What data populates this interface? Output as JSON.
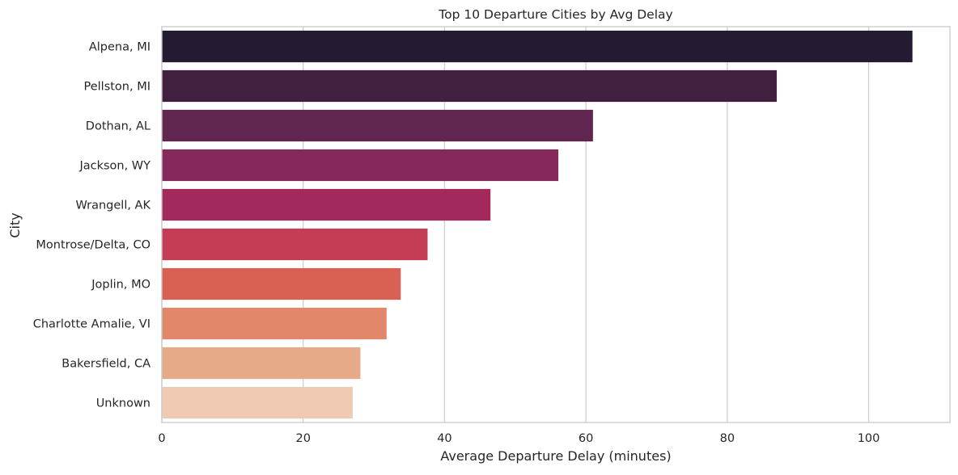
{
  "chart_data": {
    "type": "bar",
    "orientation": "horizontal",
    "title": "Top 10 Departure Cities by Avg Delay",
    "xlabel": "Average Departure Delay (minutes)",
    "ylabel": "City",
    "xlim": [
      0,
      111.5
    ],
    "xticks": [
      0,
      20,
      40,
      60,
      80,
      100
    ],
    "grid": "vertical",
    "legend": "none",
    "categories": [
      "Alpena, MI",
      "Pellston, MI",
      "Dothan, AL",
      "Jackson, WY",
      "Wrangell, AK",
      "Montrose/Delta, CO",
      "Joplin, MO",
      "Charlotte Amalie, VI",
      "Bakersfield, CA",
      "Unknown"
    ],
    "values": [
      106.2,
      87.0,
      61.0,
      56.1,
      46.5,
      37.6,
      33.8,
      31.8,
      28.1,
      27.0
    ],
    "colors": [
      "#241a31",
      "#41203f",
      "#60264f",
      "#85295a",
      "#a3285b",
      "#c43d54",
      "#d86154",
      "#e2876a",
      "#e7aa88",
      "#eecab3"
    ],
    "grid_color": "#d3d3d3",
    "spine_color": "#cccccc"
  }
}
